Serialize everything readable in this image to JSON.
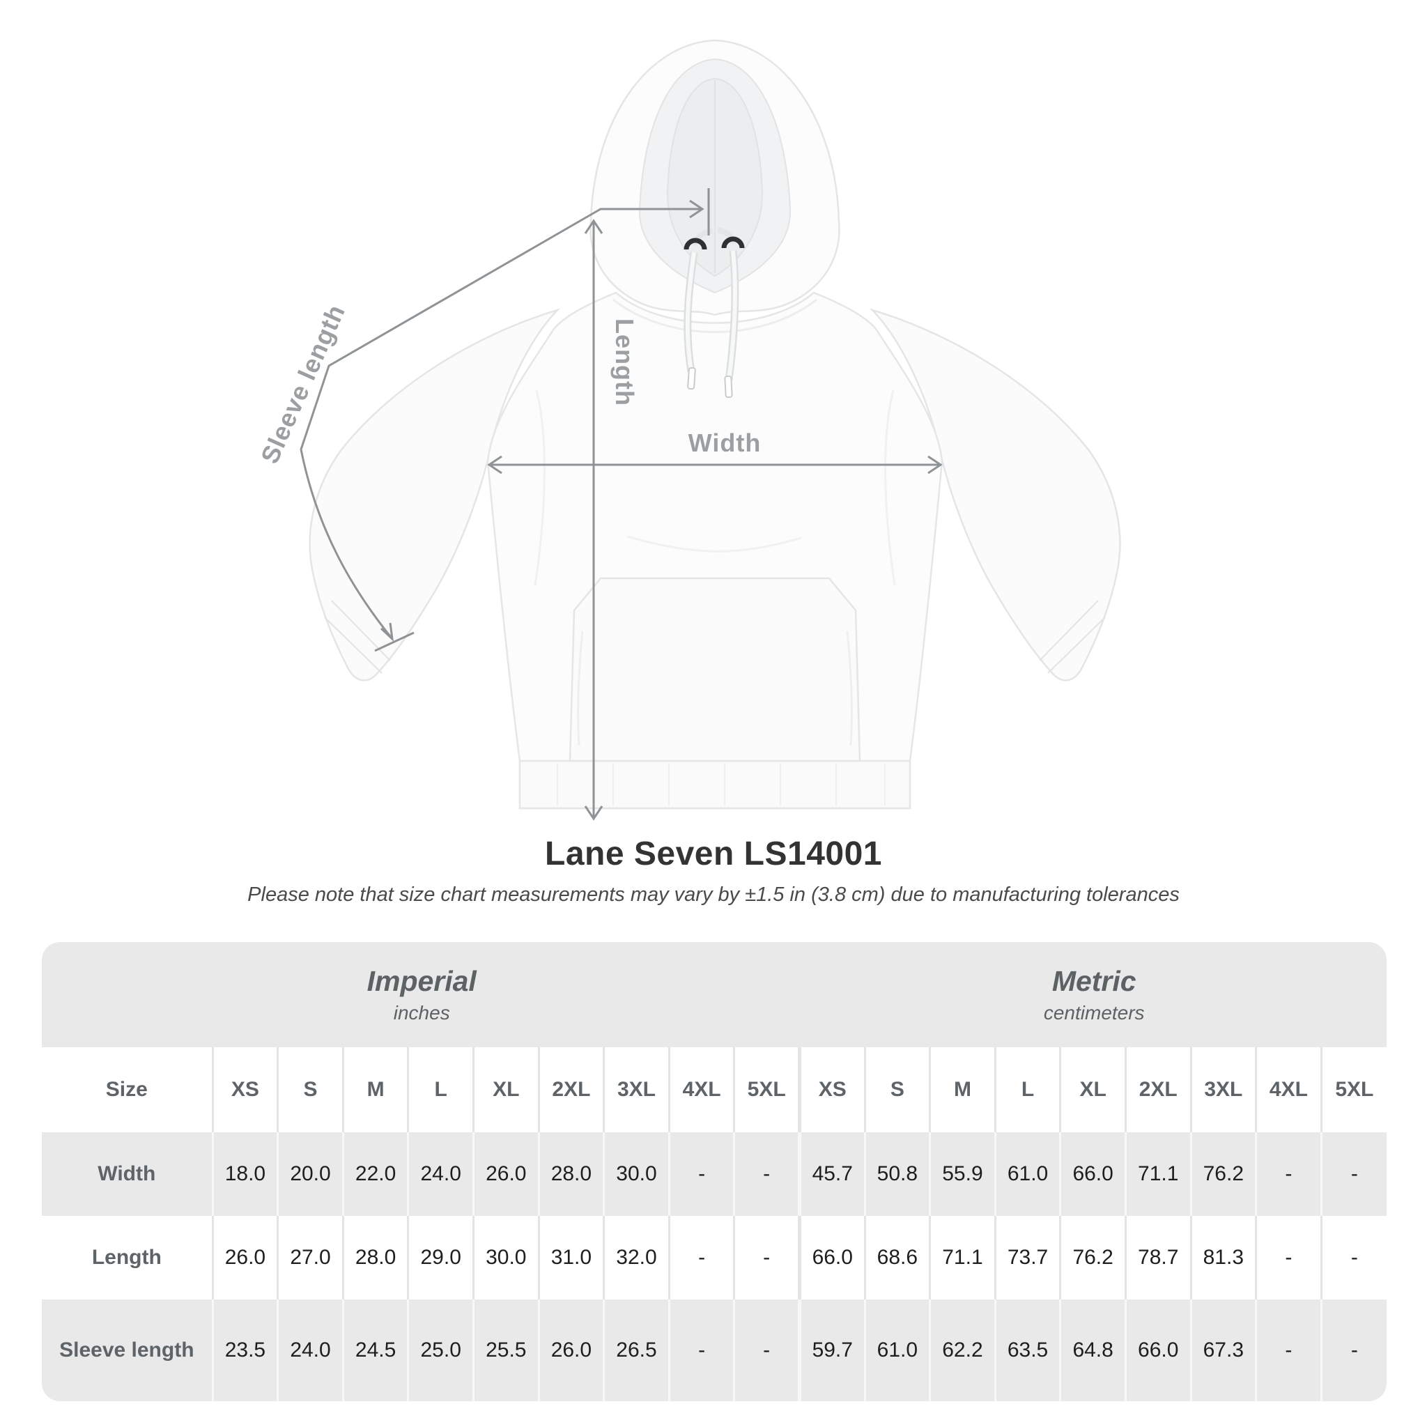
{
  "product": {
    "title": "Lane Seven LS14001",
    "tolerance_note": "Please note that size chart measurements may vary by ±1.5 in (3.8 cm) due to manufacturing tolerances"
  },
  "diagram": {
    "labels": {
      "sleeve_length": "Sleeve length",
      "length": "Length",
      "width": "Width"
    },
    "annotation_color": "#8f9396"
  },
  "size_chart": {
    "groups": [
      {
        "name": "Imperial",
        "unit": "inches"
      },
      {
        "name": "Metric",
        "unit": "centimeters"
      }
    ],
    "size_column_label": "Size",
    "sizes": [
      "XS",
      "S",
      "M",
      "L",
      "XL",
      "2XL",
      "3XL",
      "4XL",
      "5XL"
    ],
    "rows": [
      {
        "label": "Width",
        "imperial": [
          "18.0",
          "20.0",
          "22.0",
          "24.0",
          "26.0",
          "28.0",
          "30.0",
          "-",
          "-"
        ],
        "metric": [
          "45.7",
          "50.8",
          "55.9",
          "61.0",
          "66.0",
          "71.1",
          "76.2",
          "-",
          "-"
        ]
      },
      {
        "label": "Length",
        "imperial": [
          "26.0",
          "27.0",
          "28.0",
          "29.0",
          "30.0",
          "31.0",
          "32.0",
          "-",
          "-"
        ],
        "metric": [
          "66.0",
          "68.6",
          "71.1",
          "73.7",
          "76.2",
          "78.7",
          "81.3",
          "-",
          "-"
        ]
      },
      {
        "label": "Sleeve length",
        "imperial": [
          "23.5",
          "24.0",
          "24.5",
          "25.0",
          "25.5",
          "26.0",
          "26.5",
          "-",
          "-"
        ],
        "metric": [
          "59.7",
          "61.0",
          "62.2",
          "63.5",
          "64.8",
          "66.0",
          "67.3",
          "-",
          "-"
        ]
      }
    ]
  },
  "colors": {
    "band_gray": "#e9e9e9",
    "heading_text": "#5d6367",
    "data_text": "#1e1e1e",
    "title_text": "#333333",
    "annotation": "#8f9396"
  }
}
